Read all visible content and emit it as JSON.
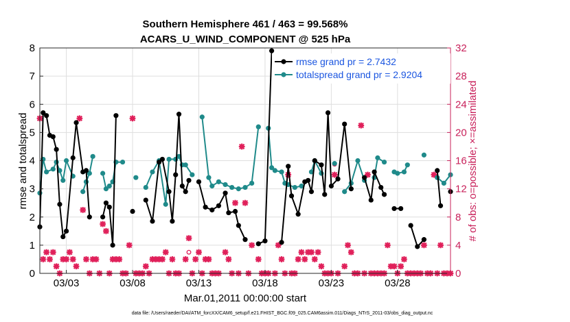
{
  "chart_data": {
    "type": "line",
    "title": [
      "Southern Hemisphere 461 / 463 = 99.568%",
      "ACARS_U_WIND_COMPONENT @ 525 hPa"
    ],
    "xlabel": "Mar.01,2011 00:00:00 start",
    "ylabel_left": "rmse and totalspread",
    "ylabel_right": "# of obs: o=possible; ×=assimilated",
    "footer": "data file: /Users/raeder/DAI/ATM_forcXX/CAM6_setup/f.e21.FHIST_BGC.f09_025.CAM6assim.011/Diags_NTrS_2011-03/obs_diag_output.nc",
    "xlim": [
      1.0,
      32.0
    ],
    "ylim_left": [
      0,
      8
    ],
    "ylim_right": [
      0,
      32
    ],
    "yticks_left": [
      0,
      1,
      2,
      3,
      4,
      5,
      6,
      7,
      8
    ],
    "yticks_right": [
      0,
      4,
      8,
      12,
      16,
      20,
      24,
      28,
      32
    ],
    "xticks": [
      {
        "x": 3,
        "label": "03/03"
      },
      {
        "x": 8,
        "label": "03/08"
      },
      {
        "x": 13,
        "label": "03/13"
      },
      {
        "x": 18,
        "label": "03/18"
      },
      {
        "x": 23,
        "label": "03/23"
      },
      {
        "x": 28,
        "label": "03/28"
      }
    ],
    "legend": {
      "position": "top-right",
      "entries": [
        "rmse grand pr = 2.7432",
        "totalspread grand pr = 2.9204"
      ]
    },
    "colors": {
      "rmse": "#000000",
      "spread": "#1f8a8a",
      "obs": "#e0205a",
      "legend_text": "#1a55e0",
      "right_axis": "#c8205a"
    },
    "series": [
      {
        "name": "rmse",
        "values": [
          [
            1.0,
            1.65
          ],
          [
            1.25,
            5.7
          ],
          [
            1.5,
            5.6
          ],
          [
            1.75,
            4.9
          ],
          [
            2.0,
            4.85
          ],
          [
            2.25,
            4.4
          ],
          [
            2.5,
            2.45
          ],
          [
            2.75,
            1.3
          ],
          [
            3.0,
            1.5
          ],
          [
            3.5,
            4.1
          ],
          [
            3.75,
            5.35
          ],
          [
            4.25,
            3.6
          ],
          [
            4.5,
            3.65
          ],
          [
            4.75,
            2.0
          ],
          [
            5.75,
            2.0
          ],
          [
            6.0,
            2.5
          ],
          [
            6.25,
            2.35
          ],
          [
            6.5,
            1.0
          ],
          [
            6.75,
            5.6
          ],
          [
            8.0,
            2.2
          ],
          [
            9.0,
            2.6
          ],
          [
            9.5,
            1.85
          ],
          [
            10.0,
            3.95
          ],
          [
            10.25,
            4.05
          ],
          [
            10.75,
            2.9
          ],
          [
            11.0,
            1.85
          ],
          [
            11.25,
            3.5
          ],
          [
            11.5,
            5.65
          ],
          [
            11.75,
            3.1
          ],
          [
            12.0,
            2.9
          ],
          [
            12.25,
            3.3
          ],
          [
            13.0,
            3.25
          ],
          [
            13.5,
            2.35
          ],
          [
            14.0,
            2.25
          ],
          [
            14.5,
            2.4
          ],
          [
            15.0,
            2.85
          ],
          [
            15.25,
            2.15
          ],
          [
            15.75,
            2.2
          ],
          [
            16.0,
            1.7
          ],
          [
            16.5,
            1.2
          ],
          [
            17.5,
            1.05
          ],
          [
            18.0,
            1.15
          ],
          [
            18.5,
            7.9
          ],
          [
            19.25,
            1.1
          ],
          [
            19.75,
            3.8
          ],
          [
            20.0,
            2.75
          ],
          [
            20.5,
            2.1
          ],
          [
            21.0,
            3.25
          ],
          [
            21.25,
            3.3
          ],
          [
            21.5,
            2.9
          ],
          [
            21.75,
            4.0
          ],
          [
            22.25,
            3.85
          ],
          [
            22.5,
            2.8
          ],
          [
            22.75,
            5.7
          ],
          [
            23.0,
            3.1
          ],
          [
            23.5,
            3.35
          ],
          [
            24.0,
            5.3
          ],
          [
            24.5,
            3.0
          ],
          [
            25.5,
            3.4
          ],
          [
            26.0,
            2.6
          ],
          [
            26.25,
            3.6
          ],
          [
            26.75,
            3.05
          ],
          [
            27.0,
            2.8
          ],
          [
            27.75,
            2.3
          ],
          [
            28.25,
            2.3
          ],
          [
            29.0,
            1.7
          ],
          [
            29.5,
            0.95
          ],
          [
            30.0,
            1.2
          ],
          [
            31.0,
            3.65
          ],
          [
            31.25,
            2.4
          ],
          [
            32.0,
            2.9
          ]
        ]
      },
      {
        "name": "totalspread",
        "values": [
          [
            1.0,
            2.85
          ],
          [
            1.25,
            4.05
          ],
          [
            1.5,
            3.6
          ],
          [
            2.0,
            3.7
          ],
          [
            2.25,
            3.95
          ],
          [
            2.5,
            3.65
          ],
          [
            2.75,
            3.3
          ],
          [
            3.0,
            4.0
          ],
          [
            3.5,
            3.45
          ],
          [
            4.25,
            2.9
          ],
          [
            4.5,
            3.25
          ],
          [
            4.75,
            3.55
          ],
          [
            5.0,
            4.15
          ],
          [
            5.75,
            3.55
          ],
          [
            6.0,
            3.0
          ],
          [
            6.25,
            3.1
          ],
          [
            6.5,
            3.25
          ],
          [
            6.75,
            3.95
          ],
          [
            7.25,
            3.95
          ],
          [
            8.25,
            3.4
          ],
          [
            9.0,
            3.05
          ],
          [
            9.5,
            3.6
          ],
          [
            10.0,
            4.0
          ],
          [
            10.5,
            2.45
          ],
          [
            10.75,
            4.05
          ],
          [
            11.25,
            4.05
          ],
          [
            11.5,
            4.15
          ],
          [
            11.75,
            3.85
          ],
          [
            12.0,
            3.85
          ],
          [
            12.5,
            3.5
          ],
          [
            13.25,
            5.55
          ],
          [
            13.75,
            3.4
          ],
          [
            14.0,
            3.1
          ],
          [
            14.5,
            3.25
          ],
          [
            15.0,
            3.15
          ],
          [
            15.5,
            3.05
          ],
          [
            16.0,
            3.0
          ],
          [
            16.5,
            3.05
          ],
          [
            17.0,
            3.2
          ],
          [
            17.5,
            5.2
          ],
          [
            18.25,
            5.15
          ],
          [
            18.5,
            3.75
          ],
          [
            18.75,
            3.65
          ],
          [
            19.25,
            3.6
          ],
          [
            19.5,
            3.2
          ],
          [
            19.75,
            3.15
          ],
          [
            20.25,
            3.05
          ],
          [
            20.75,
            3.1
          ],
          [
            21.5,
            3.6
          ],
          [
            21.75,
            4.0
          ],
          [
            22.25,
            3.55
          ],
          [
            23.25,
            3.9
          ],
          [
            24.0,
            2.9
          ],
          [
            24.5,
            3.2
          ],
          [
            25.0,
            4.0
          ],
          [
            25.5,
            3.3
          ],
          [
            26.25,
            3.4
          ],
          [
            26.5,
            4.1
          ],
          [
            27.0,
            3.95
          ],
          [
            27.75,
            3.6
          ],
          [
            28.0,
            3.55
          ],
          [
            28.5,
            3.6
          ],
          [
            28.75,
            3.85
          ],
          [
            30.0,
            4.2
          ],
          [
            31.0,
            3.4
          ],
          [
            31.5,
            3.2
          ],
          [
            32.0,
            3.5
          ]
        ]
      },
      {
        "name": "obs_assimilated",
        "axis": "right",
        "values": [
          [
            1.0,
            22
          ],
          [
            1.25,
            2
          ],
          [
            1.5,
            3
          ],
          [
            1.75,
            2
          ],
          [
            2.0,
            3
          ],
          [
            2.25,
            1
          ],
          [
            2.5,
            0
          ],
          [
            2.75,
            2
          ],
          [
            3.0,
            2
          ],
          [
            3.25,
            3
          ],
          [
            3.5,
            2
          ],
          [
            3.75,
            1
          ],
          [
            4.0,
            22
          ],
          [
            4.25,
            9
          ],
          [
            4.5,
            2
          ],
          [
            4.75,
            0
          ],
          [
            5.0,
            2
          ],
          [
            5.25,
            2
          ],
          [
            5.5,
            0
          ],
          [
            5.75,
            7
          ],
          [
            6.0,
            6
          ],
          [
            6.25,
            0
          ],
          [
            6.5,
            2
          ],
          [
            6.75,
            2
          ],
          [
            7.0,
            2
          ],
          [
            7.25,
            0
          ],
          [
            7.5,
            0
          ],
          [
            7.75,
            4
          ],
          [
            8.0,
            22
          ],
          [
            8.25,
            0
          ],
          [
            8.5,
            0
          ],
          [
            8.75,
            0
          ],
          [
            9.0,
            1
          ],
          [
            9.25,
            0
          ],
          [
            9.5,
            2
          ],
          [
            9.75,
            2
          ],
          [
            10.0,
            2
          ],
          [
            10.25,
            2
          ],
          [
            10.5,
            3
          ],
          [
            10.75,
            0
          ],
          [
            11.0,
            2
          ],
          [
            11.25,
            0
          ],
          [
            11.5,
            0
          ],
          [
            12.0,
            2
          ],
          [
            12.25,
            5
          ],
          [
            12.5,
            0
          ],
          [
            12.75,
            2
          ],
          [
            13.0,
            3
          ],
          [
            13.25,
            0
          ],
          [
            13.5,
            2
          ],
          [
            13.75,
            2
          ],
          [
            14.0,
            0
          ],
          [
            14.25,
            0
          ],
          [
            14.5,
            0
          ],
          [
            15.0,
            3
          ],
          [
            15.25,
            2
          ],
          [
            15.5,
            0
          ],
          [
            15.75,
            10
          ],
          [
            16.0,
            0
          ],
          [
            16.25,
            18
          ],
          [
            16.5,
            10
          ],
          [
            16.75,
            0
          ],
          [
            17.0,
            4
          ],
          [
            17.5,
            2
          ],
          [
            17.75,
            0
          ],
          [
            18.0,
            0
          ],
          [
            18.25,
            0
          ],
          [
            18.75,
            0
          ],
          [
            19.0,
            4
          ],
          [
            19.25,
            2
          ],
          [
            19.5,
            0
          ],
          [
            19.75,
            14
          ],
          [
            20.0,
            0
          ],
          [
            20.25,
            0
          ],
          [
            20.5,
            2
          ],
          [
            20.75,
            3
          ],
          [
            21.0,
            2
          ],
          [
            21.25,
            3
          ],
          [
            21.5,
            3
          ],
          [
            21.75,
            2
          ],
          [
            22.0,
            3
          ],
          [
            22.25,
            1
          ],
          [
            22.5,
            0
          ],
          [
            22.75,
            0
          ],
          [
            23.0,
            0
          ],
          [
            23.25,
            14
          ],
          [
            23.5,
            0
          ],
          [
            24.0,
            1
          ],
          [
            24.25,
            4
          ],
          [
            24.5,
            3
          ],
          [
            24.75,
            0
          ],
          [
            25.0,
            0
          ],
          [
            25.25,
            21
          ],
          [
            25.5,
            0
          ],
          [
            25.75,
            14
          ],
          [
            26.0,
            0
          ],
          [
            26.25,
            0
          ],
          [
            26.5,
            0
          ],
          [
            26.75,
            0
          ],
          [
            27.0,
            0
          ],
          [
            27.25,
            4
          ],
          [
            27.5,
            1
          ],
          [
            27.75,
            1
          ],
          [
            28.0,
            0
          ],
          [
            28.25,
            1
          ],
          [
            28.5,
            2
          ],
          [
            28.75,
            0
          ],
          [
            29.0,
            0
          ],
          [
            29.25,
            0
          ],
          [
            29.5,
            0
          ],
          [
            29.75,
            0
          ],
          [
            30.0,
            4
          ],
          [
            30.25,
            0
          ],
          [
            30.5,
            0
          ],
          [
            30.75,
            14
          ],
          [
            31.0,
            0
          ],
          [
            31.25,
            4
          ],
          [
            31.5,
            0
          ],
          [
            31.75,
            0
          ],
          [
            32.0,
            0
          ]
        ]
      },
      {
        "name": "obs_possible",
        "axis": "right",
        "values": [
          [
            12.25,
            3
          ],
          [
            23.25,
            15.5
          ]
        ]
      }
    ]
  }
}
